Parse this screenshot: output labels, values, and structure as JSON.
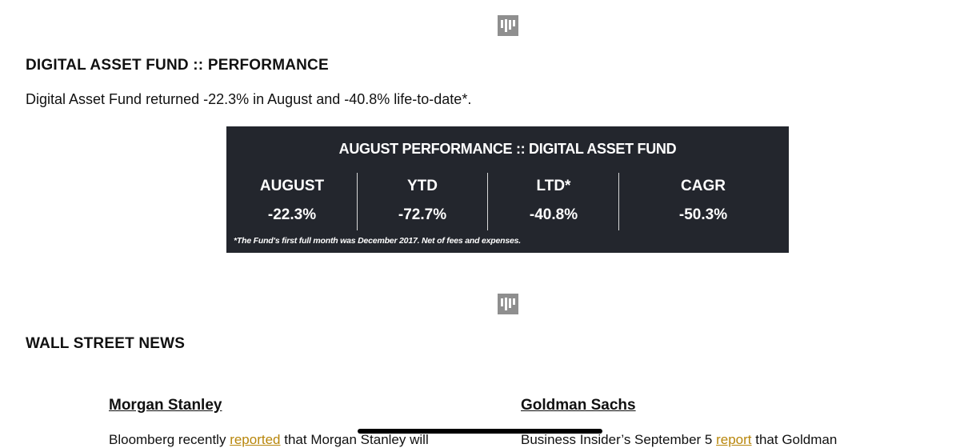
{
  "logo_top": {
    "icon": "brand-logo-icon"
  },
  "section_performance": {
    "title": "DIGITAL ASSET FUND :: PERFORMANCE",
    "intro": "Digital Asset Fund returned -22.3% in August and -40.8% life-to-date*."
  },
  "performance_table": {
    "title": "AUGUST PERFORMANCE :: DIGITAL ASSET FUND",
    "columns": [
      {
        "label": "AUGUST",
        "value": "-22.3%"
      },
      {
        "label": "YTD",
        "value": "-72.7%"
      },
      {
        "label": "LTD*",
        "value": "-40.8%"
      },
      {
        "label": "CAGR",
        "value": "-50.3%"
      }
    ],
    "footnote": "*The Fund's first full month was December 2017.  Net of fees and expenses.",
    "background_color": "#23262d"
  },
  "logo_mid": {
    "icon": "brand-logo-icon"
  },
  "section_news": {
    "title": "WALL STREET NEWS",
    "left_column": {
      "heading": "Morgan Stanley",
      "text_before": "Bloomberg  recently  ",
      "link": "reported",
      "text_after": "  that  Morgan  Stanley  will"
    },
    "right_column": {
      "heading": "Goldman Sachs",
      "text_before": "Business  Insider’s  September  5  ",
      "link": "report",
      "text_after": "  that  Goldman"
    },
    "link_color": "#b8860b"
  }
}
